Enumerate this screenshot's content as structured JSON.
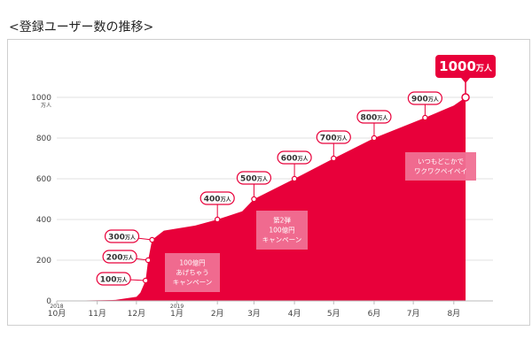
{
  "heading": "<登録ユーザー数の推移>",
  "chart_data": {
    "type": "area",
    "x_range": [
      "2018-10-01",
      "2019-08-31"
    ],
    "ylim": [
      0,
      1000
    ],
    "y_ticks": [
      0,
      200,
      400,
      600,
      800,
      1000
    ],
    "y_tick_labels": [
      "0",
      "200",
      "400",
      "600",
      "800",
      "1000"
    ],
    "y_unit_label": "万人",
    "x_ticks": [
      {
        "date": "2018-10-01",
        "label": "10月",
        "year": "2018"
      },
      {
        "date": "2018-11-01",
        "label": "11月"
      },
      {
        "date": "2018-12-01",
        "label": "12月"
      },
      {
        "date": "2019-01-01",
        "label": "1月",
        "year": "2019"
      },
      {
        "date": "2019-02-01",
        "label": "2月"
      },
      {
        "date": "2019-03-01",
        "label": "3月"
      },
      {
        "date": "2019-04-01",
        "label": "4月"
      },
      {
        "date": "2019-05-01",
        "label": "5月"
      },
      {
        "date": "2019-06-01",
        "label": "6月"
      },
      {
        "date": "2019-07-01",
        "label": "7月"
      },
      {
        "date": "2019-08-01",
        "label": "8月"
      }
    ],
    "series": [
      {
        "color": "#e8003a",
        "points": [
          {
            "date": "2018-10-01",
            "value": 0
          },
          {
            "date": "2018-11-15",
            "value": 5
          },
          {
            "date": "2018-12-01",
            "value": 20
          },
          {
            "date": "2018-12-04",
            "value": 40
          },
          {
            "date": "2018-12-08",
            "value": 100
          },
          {
            "date": "2018-12-10",
            "value": 200
          },
          {
            "date": "2018-12-13",
            "value": 300
          },
          {
            "date": "2018-12-22",
            "value": 345
          },
          {
            "date": "2019-01-15",
            "value": 370
          },
          {
            "date": "2019-02-01",
            "value": 400
          },
          {
            "date": "2019-02-20",
            "value": 440
          },
          {
            "date": "2019-03-01",
            "value": 500
          },
          {
            "date": "2019-04-01",
            "value": 600
          },
          {
            "date": "2019-05-01",
            "value": 700
          },
          {
            "date": "2019-06-01",
            "value": 800
          },
          {
            "date": "2019-07-10",
            "value": 900
          },
          {
            "date": "2019-08-01",
            "value": 960
          },
          {
            "date": "2019-08-10",
            "value": 1000
          }
        ]
      }
    ],
    "milestones": [
      {
        "date": "2018-12-08",
        "value": 100,
        "num": "100",
        "unit": "万人"
      },
      {
        "date": "2018-12-10",
        "value": 200,
        "num": "200",
        "unit": "万人"
      },
      {
        "date": "2018-12-13",
        "value": 300,
        "num": "300",
        "unit": "万人"
      },
      {
        "date": "2019-02-01",
        "value": 400,
        "num": "400",
        "unit": "万人"
      },
      {
        "date": "2019-03-01",
        "value": 500,
        "num": "500",
        "unit": "万人"
      },
      {
        "date": "2019-04-01",
        "value": 600,
        "num": "600",
        "unit": "万人"
      },
      {
        "date": "2019-05-01",
        "value": 700,
        "num": "700",
        "unit": "万人"
      },
      {
        "date": "2019-06-01",
        "value": 800,
        "num": "800",
        "unit": "万人"
      },
      {
        "date": "2019-07-10",
        "value": 900,
        "num": "900",
        "unit": "万人"
      },
      {
        "date": "2019-08-10",
        "value": 1000,
        "num": "1000",
        "unit": "万人",
        "featured": true
      }
    ],
    "campaign_notes": [
      {
        "lines": [
          "100億円",
          "あげちゃう",
          "キャンペーン"
        ]
      },
      {
        "lines": [
          "第2弾",
          "100億円",
          "キャンペーン"
        ]
      },
      {
        "lines": [
          "いつもどこかで",
          "ワクワクペイペイ"
        ]
      }
    ]
  }
}
